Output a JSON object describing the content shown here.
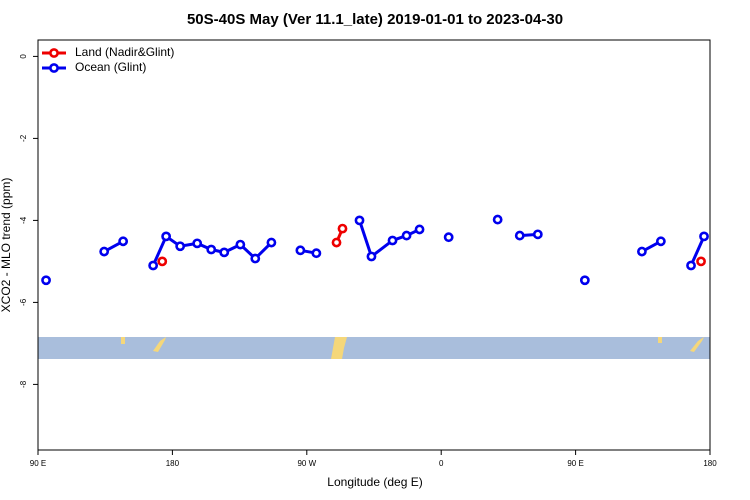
{
  "chart_data": {
    "type": "line",
    "title": "50S-40S May (Ver 11.1_late)   2019-01-01 to 2023-04-30",
    "xlabel": "Longitude (deg E)",
    "ylabel": "XCO2 - MLO trend (ppm)",
    "xlim": [
      90,
      540
    ],
    "ylim": [
      -9.6,
      0.4
    ],
    "xticks": [
      {
        "value": 90,
        "label": "90 E"
      },
      180,
      {
        "value": 270,
        "label": "90 W"
      },
      {
        "value": 360,
        "label": "0"
      },
      {
        "value": 450,
        "label": "90 E"
      },
      {
        "value": 540,
        "label": "180"
      }
    ],
    "yticks": [
      0,
      -2,
      -4,
      -6,
      -8
    ],
    "legend": "top-left",
    "series": [
      {
        "name": "Land (Nadir&Glint)",
        "color": "#ee0000",
        "x": [
          173.2,
          null,
          289.9,
          293.9,
          null,
          534.0
        ],
        "values": [
          -5.0,
          null,
          -4.54,
          -4.2,
          null,
          -5.0
        ]
      },
      {
        "name": "Ocean (Glint)",
        "color": "#0000ee",
        "x": [
          95.4,
          null,
          134.3,
          147.0,
          null,
          167.1,
          175.8,
          185.2,
          196.6,
          206.0,
          214.7,
          225.5,
          235.5,
          246.3,
          null,
          265.7,
          276.4,
          null,
          305.3,
          313.3,
          327.4,
          336.8,
          345.5,
          null,
          365.0,
          null,
          397.8,
          null,
          412.6,
          424.7,
          null,
          456.2,
          null,
          494.4,
          507.1,
          null,
          527.3,
          536.0
        ],
        "values": [
          -5.46,
          null,
          -4.76,
          -4.51,
          null,
          -5.1,
          -4.39,
          -4.63,
          -4.56,
          -4.71,
          -4.78,
          -4.59,
          -4.93,
          -4.54,
          null,
          -4.73,
          -4.8,
          null,
          -4.0,
          -4.88,
          -4.49,
          -4.37,
          -4.22,
          null,
          -4.41,
          null,
          -3.98,
          null,
          -4.37,
          -4.34,
          null,
          -5.46,
          null,
          -4.76,
          -4.51,
          null,
          -5.1,
          -4.39
        ]
      }
    ]
  }
}
